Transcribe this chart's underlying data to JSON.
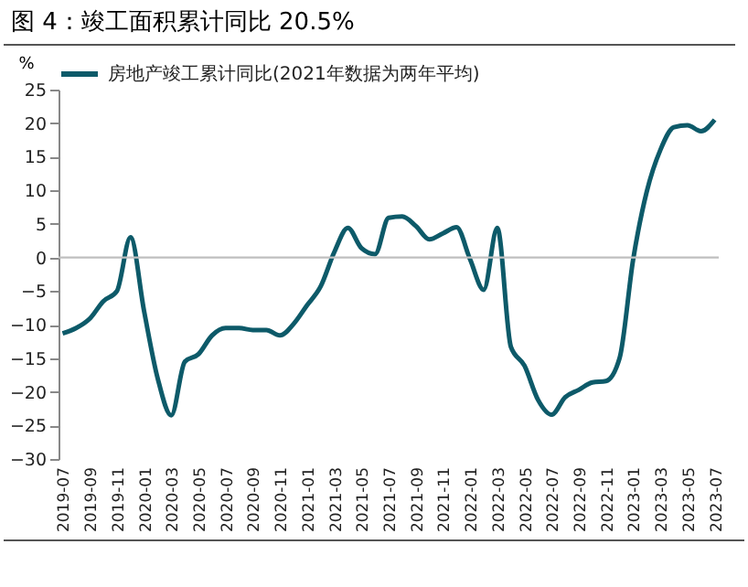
{
  "chart_data": {
    "type": "line",
    "title": "图 4：竣工面积累计同比 20.5%",
    "ylabel": "%",
    "categories": [
      "2019-07",
      null,
      "2019-09",
      null,
      "2019-11",
      null,
      "2020-01",
      null,
      "2020-03",
      null,
      "2020-05",
      null,
      "2020-07",
      null,
      "2020-09",
      null,
      "2020-11",
      null,
      "2021-01",
      null,
      "2021-03",
      null,
      "2021-05",
      null,
      "2021-07",
      null,
      "2021-09",
      null,
      "2021-11",
      null,
      "2022-01",
      null,
      "2022-03",
      null,
      "2022-05",
      null,
      "2022-07",
      null,
      "2022-09",
      null,
      "2022-11",
      null,
      "2023-01",
      null,
      "2023-03",
      null,
      "2023-05",
      null,
      "2023-07"
    ],
    "series": [
      {
        "name": "房地产竣工累计同比(2021年数据为两年平均)",
        "color": "#0d5a69",
        "values": [
          -11.3,
          -10.5,
          -9.1,
          -6.5,
          -5,
          3,
          -8,
          -18,
          -23.5,
          -15.5,
          -14.4,
          -11.6,
          -10.5,
          -10.5,
          -10.8,
          -10.8,
          -11.6,
          -9.9,
          -7.1,
          -4.3,
          0.8,
          4.4,
          1.4,
          0.5,
          5.9,
          6.1,
          4.7,
          2.7,
          3.6,
          4.5,
          -0.3,
          -4.8,
          4.4,
          -13.3,
          -16.1,
          -21.2,
          -23.4,
          -20.8,
          -19.7,
          -18.6,
          -18.4,
          -15,
          -0.3,
          9.8,
          16,
          19.4,
          19.7,
          18.8,
          20.5
        ]
      }
    ],
    "ylim": [
      -30,
      25
    ],
    "yticks": [
      -30,
      -25,
      -20,
      -15,
      -10,
      -5,
      0,
      5,
      10,
      15,
      20,
      25
    ],
    "ref_lines": [
      {
        "axis": "y",
        "value": 0,
        "color": "#bfbfbf"
      }
    ],
    "legend": "top",
    "grid": false,
    "marker": "none",
    "line_style": "solid"
  }
}
